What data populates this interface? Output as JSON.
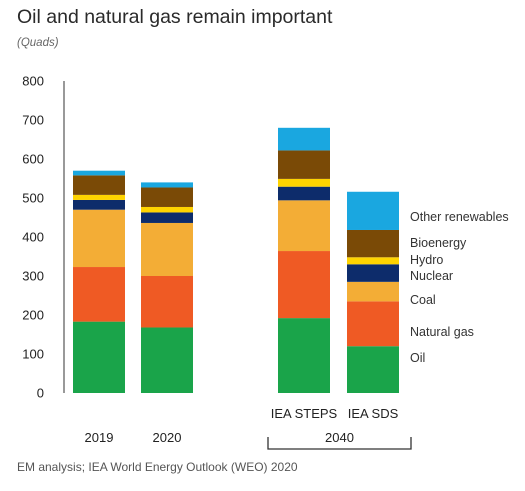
{
  "chart_data": {
    "type": "bar",
    "stacked": true,
    "title": "Oil and natural gas remain important",
    "subtitle": "(Quads)",
    "categories": [
      "2019",
      "2020",
      "IEA STEPS",
      "IEA SDS"
    ],
    "group_label": "2040",
    "ylim": [
      0,
      800
    ],
    "yticks": [
      0,
      100,
      200,
      300,
      400,
      500,
      600,
      700,
      800
    ],
    "series": [
      {
        "name": "Oil",
        "color": "#1aa44a",
        "values": [
          183,
          168,
          192,
          120
        ]
      },
      {
        "name": "Natural gas",
        "color": "#ef5a24",
        "values": [
          140,
          132,
          172,
          115
        ]
      },
      {
        "name": "Coal",
        "color": "#f3ad36",
        "values": [
          147,
          136,
          130,
          50
        ]
      },
      {
        "name": "Nuclear",
        "color": "#0d2c6b",
        "values": [
          25,
          27,
          35,
          45
        ]
      },
      {
        "name": "Hydro",
        "color": "#ffd400",
        "values": [
          13,
          14,
          20,
          18
        ]
      },
      {
        "name": "Bioenergy",
        "color": "#7a4a06",
        "values": [
          50,
          50,
          73,
          70
        ]
      },
      {
        "name": "Other renewables",
        "color": "#1aa7e0",
        "values": [
          12,
          13,
          58,
          98
        ]
      }
    ],
    "legend_placement": "right",
    "source": "EM analysis; IEA World Energy Outlook (WEO) 2020"
  }
}
